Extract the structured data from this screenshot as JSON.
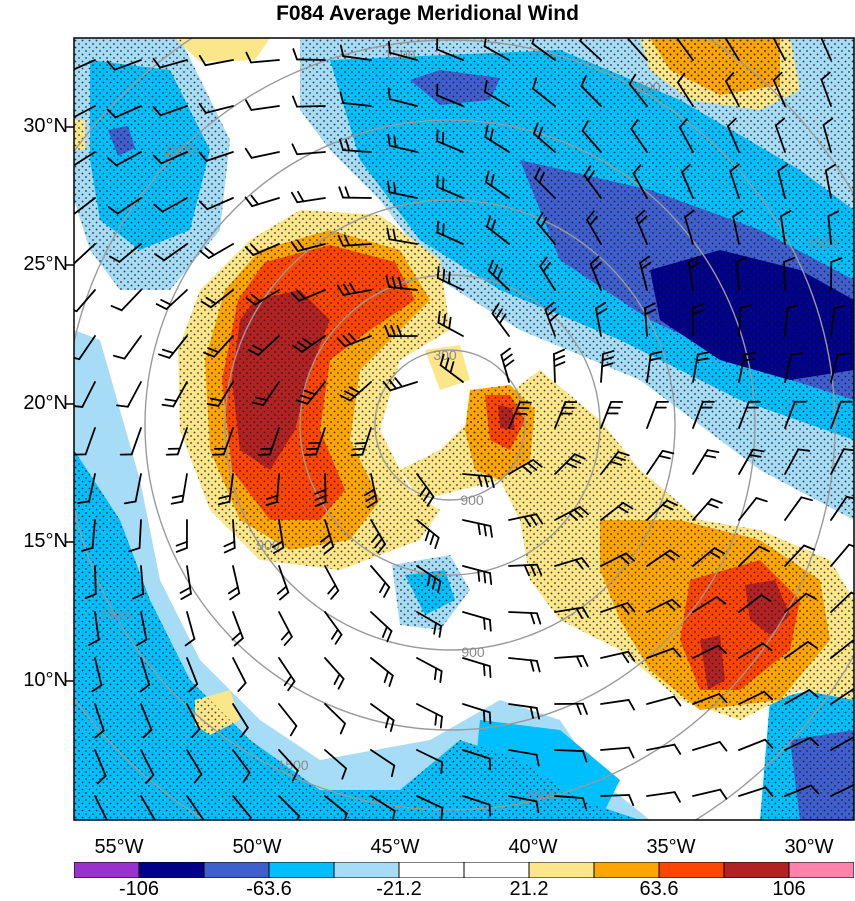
{
  "title": "F084 Average Meridional Wind",
  "map": {
    "lat_labels": [
      "30°N",
      "25°N",
      "20°N",
      "15°N",
      "10°N"
    ],
    "lon_labels": [
      "55°W",
      "50°W",
      "45°W",
      "40°W",
      "35°W",
      "30°W"
    ],
    "range_ring_labels": [
      "300",
      "900",
      "900",
      "900",
      "1500",
      "1500",
      "1500",
      "1500",
      "1500",
      "1500",
      "1500"
    ]
  },
  "colorbar": {
    "tick_labels": [
      "-106",
      "-63.6",
      "-21.2",
      "21.2",
      "63.6",
      "106"
    ],
    "colors": [
      "#9932cc",
      "#00008b",
      "#3f5fcf",
      "#00bfff",
      "#a6dcf5",
      "#ffffff",
      "#ffffff",
      "#fbe68a",
      "#ffa500",
      "#ff4500",
      "#b22222",
      "#ff82ab"
    ]
  },
  "colors": {
    "positive_strong": "#b22222",
    "positive_mid": "#ff4500",
    "positive_light": "#ffa500",
    "positive_faint": "#fbe68a",
    "negative_faint": "#a6dcf5",
    "negative_light": "#00bfff",
    "negative_mid": "#3f5fcf",
    "negative_strong": "#00008b",
    "range_ring": "#9a9a9a",
    "wind_barb": "#000000"
  }
}
